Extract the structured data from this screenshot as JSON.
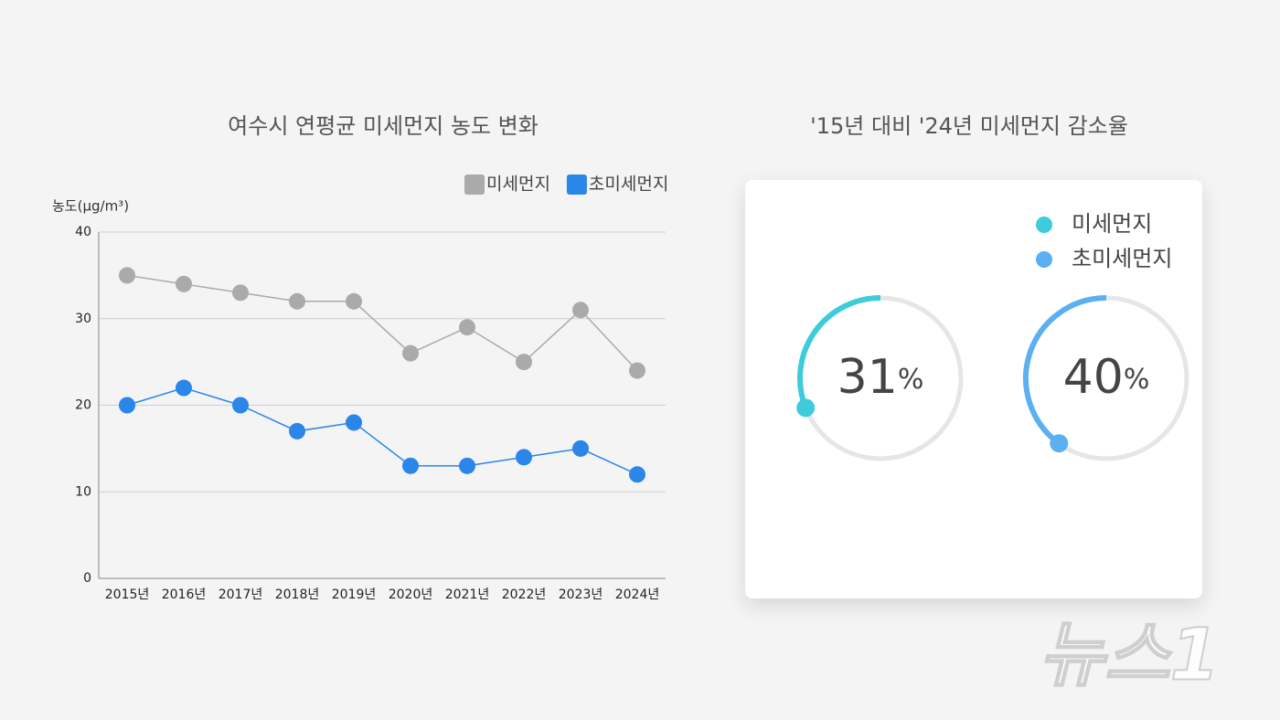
{
  "chart_data": [
    {
      "type": "line",
      "title": "여수시 연평균 미세먼지 농도 변화",
      "y_label": "농도(μg/m³)",
      "categories": [
        "2015년",
        "2016년",
        "2017년",
        "2018년",
        "2019년",
        "2020년",
        "2021년",
        "2022년",
        "2023년",
        "2024년"
      ],
      "series": [
        {
          "name": "미세먼지",
          "color": "#aaaaaa",
          "values": [
            35,
            34,
            33,
            32,
            32,
            26,
            29,
            25,
            31,
            24
          ]
        },
        {
          "name": "초미세먼지",
          "color": "#2a86e8",
          "values": [
            20,
            22,
            20,
            17,
            18,
            13,
            13,
            14,
            15,
            12
          ]
        }
      ],
      "ylim": [
        0,
        40
      ],
      "yticks": [
        0,
        10,
        20,
        30,
        40
      ],
      "grid": true
    },
    {
      "type": "donut",
      "title": "'15년 대비 '24년 미세먼지 감소율",
      "unit": "%",
      "series": [
        {
          "name": "미세먼지",
          "color": "#3ecbdb",
          "values": [
            31
          ]
        },
        {
          "name": "초미세먼지",
          "color": "#5ab0f0",
          "values": [
            40
          ]
        }
      ]
    }
  ],
  "watermark": "뉴스1"
}
